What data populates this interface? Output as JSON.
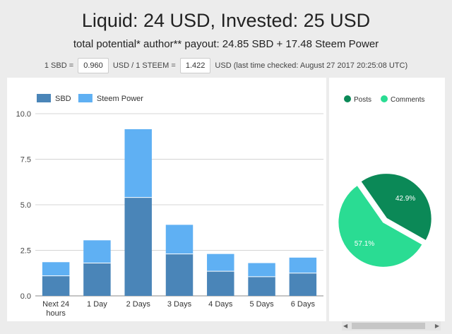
{
  "header": {
    "title": "Liquid: 24 USD, Invested: 25 USD",
    "subtitle": "total potential* author** payout: 24.85 SBD + 17.48 Steem Power"
  },
  "rates": {
    "prefix": "1 SBD =",
    "sbd_value": "0.960",
    "middle": "USD / 1 STEEM =",
    "steem_value": "1.422",
    "suffix": "USD (last time checked: August 27 2017 20:25:08 UTC)"
  },
  "colors": {
    "sbd": "#4a85b8",
    "steem_power": "#5fb0f3",
    "posts": "#0b8957",
    "comments": "#2adc93"
  },
  "chart_data": [
    {
      "type": "bar",
      "stacked": true,
      "categories": [
        "Next 24 hours",
        "1 Day",
        "2 Days",
        "3 Days",
        "4 Days",
        "5 Days",
        "6 Days"
      ],
      "series": [
        {
          "name": "SBD",
          "values": [
            1.1,
            1.8,
            5.4,
            2.3,
            1.35,
            1.05,
            1.25
          ]
        },
        {
          "name": "Steem Power",
          "values": [
            0.75,
            1.25,
            3.75,
            1.6,
            0.95,
            0.75,
            0.85
          ]
        }
      ],
      "ylim": [
        0,
        10
      ],
      "yticks": [
        "0.0",
        "2.5",
        "5.0",
        "7.5",
        "10.0"
      ],
      "grid": true,
      "legend": "top-left"
    },
    {
      "type": "pie",
      "slices": [
        {
          "name": "Posts",
          "value": 42.9,
          "label": "42.9%"
        },
        {
          "name": "Comments",
          "value": 57.1,
          "label": "57.1%"
        }
      ],
      "legend": "top"
    }
  ]
}
